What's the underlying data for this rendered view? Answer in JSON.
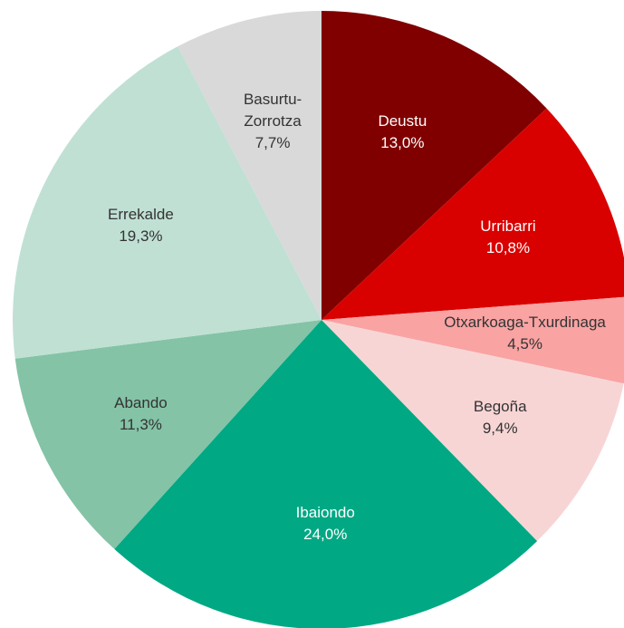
{
  "chart_data": {
    "type": "pie",
    "categories": [
      "Deustu",
      "Urribarri",
      "Otxarkoaga-Txurdinaga",
      "Begoña",
      "Ibaiondo",
      "Abando",
      "Errekalde",
      "Basurtu-Zorrotza"
    ],
    "values": [
      13.0,
      10.8,
      4.5,
      9.4,
      24.0,
      11.3,
      19.3,
      7.7
    ],
    "value_labels": [
      "13,0%",
      "10,8%",
      "4,5%",
      "9,4%",
      "24,0%",
      "11,3%",
      "19,3%",
      "7,7%"
    ],
    "colors": [
      "#800000",
      "#d90000",
      "#f9a3a3",
      "#f8d5d5",
      "#00a884",
      "#84c3a6",
      "#c0e0d4",
      "#d9d9d9"
    ]
  }
}
